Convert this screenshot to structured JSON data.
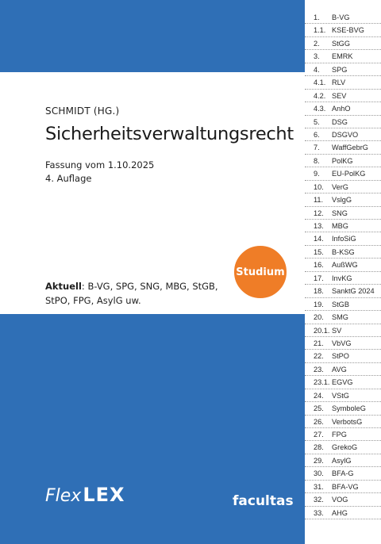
{
  "cover": {
    "editor": "SCHMIDT (HG.)",
    "title": "Sicherheitsverwaltungsrecht",
    "edition_date": "Fassung vom 1.10.2025",
    "edition_number": "4. Auflage",
    "badge": "Studium",
    "current_label": "Aktuell",
    "current_text": ": B-VG, SPG, SNG, MBG, StGB, StPO, FPG, AsylG uw.",
    "logo_flex": "Flex",
    "logo_lex": "LEX",
    "publisher": "facultas",
    "colors": {
      "blue": "#2f6fb6",
      "orange": "#ef7d27"
    }
  },
  "index": [
    {
      "num": "1.",
      "abbr": "B-VG"
    },
    {
      "num": "1.1.",
      "abbr": "KSE-BVG"
    },
    {
      "num": "2.",
      "abbr": "StGG"
    },
    {
      "num": "3.",
      "abbr": "EMRK"
    },
    {
      "num": "4.",
      "abbr": "SPG"
    },
    {
      "num": "4.1.",
      "abbr": "RLV"
    },
    {
      "num": "4.2.",
      "abbr": "SEV"
    },
    {
      "num": "4.3.",
      "abbr": "AnhO"
    },
    {
      "num": "5.",
      "abbr": "DSG"
    },
    {
      "num": "6.",
      "abbr": "DSGVO"
    },
    {
      "num": "7.",
      "abbr": "WaffGebrG"
    },
    {
      "num": "8.",
      "abbr": "PolKG"
    },
    {
      "num": "9.",
      "abbr": "EU-PolKG"
    },
    {
      "num": "10.",
      "abbr": "VerG"
    },
    {
      "num": "11.",
      "abbr": "VslgG"
    },
    {
      "num": "12.",
      "abbr": "SNG"
    },
    {
      "num": "13.",
      "abbr": "MBG"
    },
    {
      "num": "14.",
      "abbr": "InfoSiG"
    },
    {
      "num": "15.",
      "abbr": "B-KSG"
    },
    {
      "num": "16.",
      "abbr": "AußWG"
    },
    {
      "num": "17.",
      "abbr": "InvKG"
    },
    {
      "num": "18.",
      "abbr": "SanktG 2024"
    },
    {
      "num": "19.",
      "abbr": "StGB"
    },
    {
      "num": "20.",
      "abbr": "SMG"
    },
    {
      "num": "20.1.",
      "abbr": "SV"
    },
    {
      "num": "21.",
      "abbr": "VbVG"
    },
    {
      "num": "22.",
      "abbr": "StPO"
    },
    {
      "num": "23.",
      "abbr": "AVG"
    },
    {
      "num": "23.1.",
      "abbr": "EGVG"
    },
    {
      "num": "24.",
      "abbr": "VStG"
    },
    {
      "num": "25.",
      "abbr": "SymboleG"
    },
    {
      "num": "26.",
      "abbr": "VerbotsG"
    },
    {
      "num": "27.",
      "abbr": "FPG"
    },
    {
      "num": "28.",
      "abbr": "GrekoG"
    },
    {
      "num": "29.",
      "abbr": "AsylG"
    },
    {
      "num": "30.",
      "abbr": "BFA-G"
    },
    {
      "num": "31.",
      "abbr": "BFA-VG"
    },
    {
      "num": "32.",
      "abbr": "VOG"
    },
    {
      "num": "33.",
      "abbr": "AHG"
    }
  ]
}
